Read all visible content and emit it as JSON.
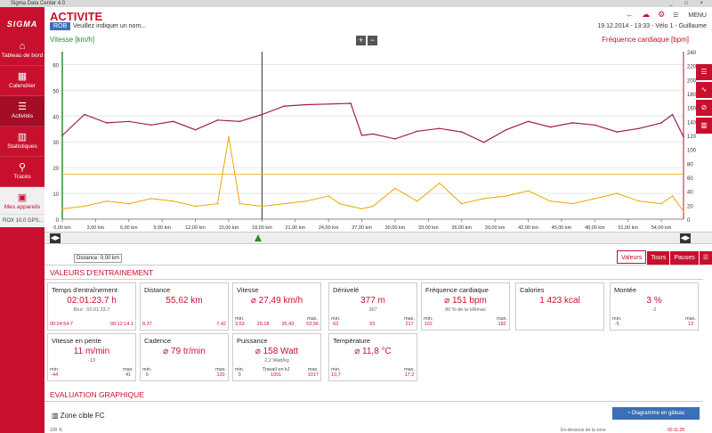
{
  "window": {
    "title": "Sigma Data Center 4.0"
  },
  "sidebar": {
    "logo": "SIGMA",
    "items": [
      {
        "label": "Tableau de bord",
        "icon": "home-icon"
      },
      {
        "label": "Calendrier",
        "icon": "calendar-icon"
      },
      {
        "label": "Activités",
        "icon": "list-icon"
      },
      {
        "label": "Statistiques",
        "icon": "bar-chart-icon"
      },
      {
        "label": "Tracés",
        "icon": "route-icon"
      },
      {
        "label": "Mes appareils",
        "icon": "device-icon"
      }
    ],
    "device": "ROX 10.0 GPS..."
  },
  "header": {
    "title": "ACTIVITE",
    "tag": "ROB",
    "name_placeholder": "Veuillez indiquer un nom...",
    "date": "19.12.2014",
    "time": "13:33",
    "bike": "Vélo 1",
    "user": "Guillaume",
    "menu": "MENU"
  },
  "chart": {
    "left_label": "Vitesse [km/h]",
    "right_label": "Fréquence cardiaque [bpm]",
    "left_ticks": [
      0,
      10,
      20,
      30,
      40,
      50,
      60
    ],
    "right_ticks": [
      0,
      20,
      40,
      60,
      80,
      100,
      120,
      140,
      160,
      180,
      200,
      220,
      240
    ],
    "x_ticks": [
      "0,00 km",
      "3,00 km",
      "6,00 km",
      "9,00 km",
      "12,00 km",
      "15,00 km",
      "18,00 km",
      "21,00 km",
      "24,00 km",
      "27,00 km",
      "30,00 km",
      "33,00 km",
      "36,00 km",
      "39,00 km",
      "42,00 km",
      "45,00 km",
      "48,00 km",
      "51,00 km",
      "54,00 km"
    ],
    "colors": {
      "speed": "#f0a500",
      "hr": "#9c2248",
      "speed_axis": "#2e8b2e"
    }
  },
  "chart_data": {
    "type": "line",
    "xlabel": "",
    "x_unit": "km",
    "xlim": [
      0,
      56
    ],
    "series": [
      {
        "name": "Vitesse [km/h]",
        "axis": "left",
        "ylim": [
          0,
          65
        ],
        "x": [
          0,
          2,
          4,
          6,
          8,
          10,
          12,
          14,
          15,
          16,
          18,
          20,
          22,
          24,
          25,
          26,
          27,
          28,
          30,
          32,
          34,
          36,
          38,
          40,
          42,
          44,
          46,
          48,
          50,
          52,
          54,
          55,
          56
        ],
        "values": [
          4,
          5,
          7,
          6,
          8,
          7,
          5,
          6,
          32,
          6,
          5,
          6,
          7,
          9,
          6,
          5,
          4,
          5,
          12,
          7,
          14,
          6,
          8,
          9,
          11,
          7,
          6,
          8,
          10,
          7,
          6,
          9,
          3
        ]
      },
      {
        "name": "Fréquence cardiaque [bpm]",
        "axis": "right",
        "ylim": [
          0,
          240
        ],
        "x": [
          0,
          2,
          4,
          6,
          8,
          10,
          12,
          14,
          16,
          18,
          20,
          22,
          24,
          26,
          27,
          28,
          30,
          32,
          34,
          36,
          38,
          40,
          42,
          44,
          46,
          48,
          50,
          52,
          54,
          55,
          56
        ],
        "values": [
          120,
          150,
          138,
          140,
          135,
          140,
          128,
          142,
          140,
          150,
          162,
          164,
          165,
          166,
          120,
          122,
          115,
          126,
          130,
          125,
          110,
          128,
          140,
          132,
          138,
          135,
          125,
          130,
          138,
          150,
          118
        ]
      }
    ]
  },
  "tabs": [
    "Valeurs",
    "Tours",
    "Pauses"
  ],
  "distance_label": "Distance: 0,00 km",
  "training": {
    "section_title": "VALEURS D'ENTRAINEMENT",
    "cards": [
      {
        "title": "Temps d'entraînement",
        "value": "02:01:23.7 h",
        "sub": "Brut : 02:01:23.7",
        "stats": [
          {
            "l": "",
            "v": "00:24:54.7"
          },
          {
            "l": "",
            "v": "00:12:14.1"
          }
        ]
      },
      {
        "title": "Distance",
        "value": "55,62 km",
        "sub": "",
        "stats": [
          {
            "l": "",
            "v": "8,37"
          },
          {
            "l": "",
            "v": "7,42"
          }
        ]
      },
      {
        "title": "Vitesse",
        "value": "⌀ 27,49 km/h",
        "sub": "",
        "stats": [
          {
            "l": "min.",
            "v": "3,53"
          },
          {
            "l": "",
            "v": "20,18"
          },
          {
            "l": "",
            "v": "35,43"
          },
          {
            "l": "max.",
            "v": "53,56"
          }
        ]
      },
      {
        "title": "Dénivelé",
        "value": "377 m",
        "sub": "367",
        "stats": [
          {
            "l": "min.",
            "v": "63"
          },
          {
            "l": "",
            "v": "93"
          },
          {
            "l": "max.",
            "v": "217"
          }
        ]
      },
      {
        "title": "Fréquence cardiaque",
        "value": "⌀ 151 bpm",
        "sub": "80 % de la HRmax",
        "stats": [
          {
            "l": "min.",
            "v": "102"
          },
          {
            "l": "max.",
            "v": "182"
          }
        ]
      },
      {
        "title": "Calories",
        "value": "1 423 kcal",
        "sub": "",
        "stats": []
      },
      {
        "title": "Montée",
        "value": "3 %",
        "sub": "-2",
        "stats": [
          {
            "l": "min.",
            "v": "-5"
          },
          {
            "l": "max.",
            "v": "13"
          }
        ]
      },
      {
        "title": "Vitesse en pente",
        "value": "11 m/min",
        "sub": "-13",
        "stats": [
          {
            "l": "min.",
            "v": "-44"
          },
          {
            "l": "max.",
            "v": "41"
          }
        ]
      },
      {
        "title": "Cadence",
        "value": "⌀ 79 tr/min",
        "sub": "",
        "stats": [
          {
            "l": "min.",
            "v": "0"
          },
          {
            "l": "max.",
            "v": "120"
          }
        ]
      },
      {
        "title": "Puissance",
        "value": "⌀ 158 Watt",
        "sub": "2,2 Watt/kg",
        "stats": [
          {
            "l": "min.",
            "v": "0"
          },
          {
            "l": "Travail en kJ",
            "v": "1001"
          },
          {
            "l": "max.",
            "v": "1017"
          }
        ]
      },
      {
        "title": "Température",
        "value": "⌀ 11,8 °C",
        "sub": "",
        "stats": [
          {
            "l": "min.",
            "v": "10,7"
          },
          {
            "l": "max.",
            "v": "17,2"
          }
        ]
      }
    ]
  },
  "graph_eval": {
    "section_title": "EVALUATION GRAPHIQUE",
    "zone_label": "Zone cible FC",
    "pie_button": "Diagramme en gâteau",
    "pct": "100 %",
    "bottom_text": "En-dessous de la zone",
    "bottom_time": "00:11:28"
  }
}
